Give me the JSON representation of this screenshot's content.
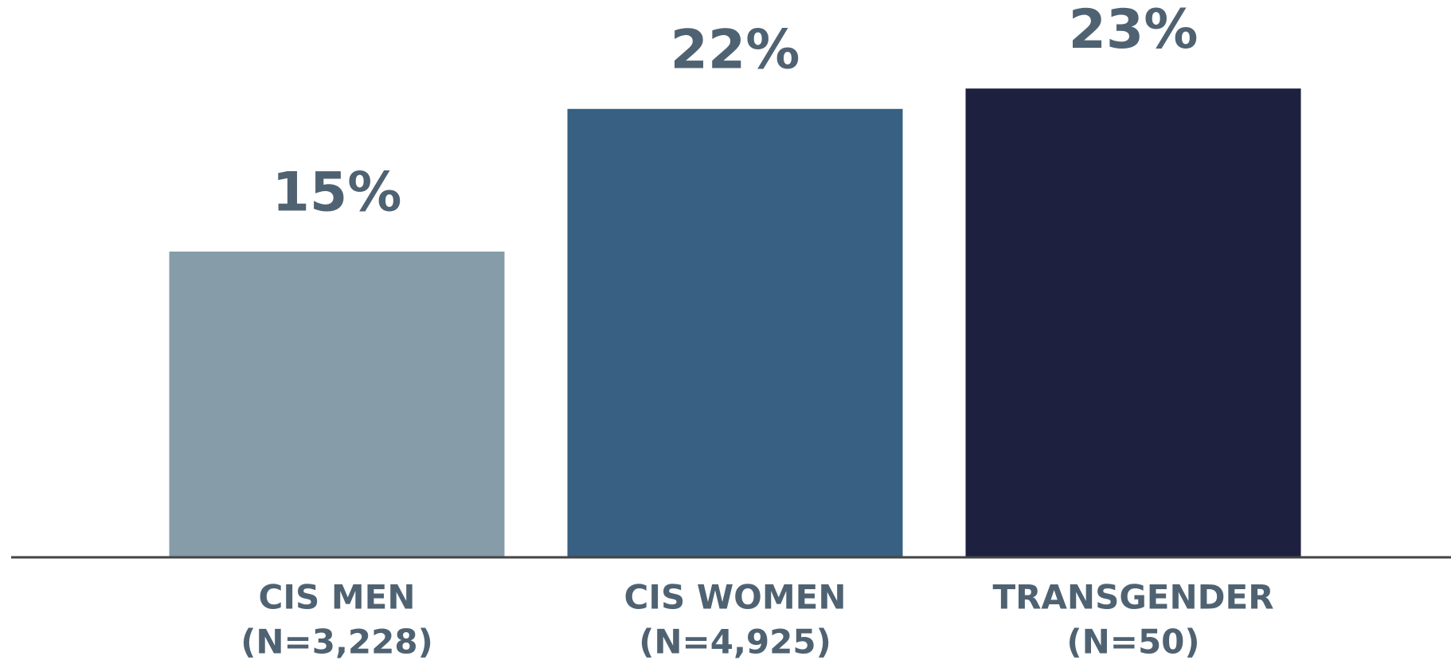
{
  "chart_data": {
    "type": "bar",
    "categories": [
      "CIS MEN",
      "CIS WOMEN",
      "TRANSGENDER"
    ],
    "sample_sizes": [
      "(N=3,228)",
      "(N=4,925)",
      "(N=50)"
    ],
    "values": [
      15,
      22,
      23
    ],
    "value_labels": [
      "15%",
      "22%",
      "23%"
    ],
    "colors": [
      "#869ca8",
      "#376082",
      "#1e2040"
    ],
    "ylim": [
      0,
      25
    ]
  }
}
